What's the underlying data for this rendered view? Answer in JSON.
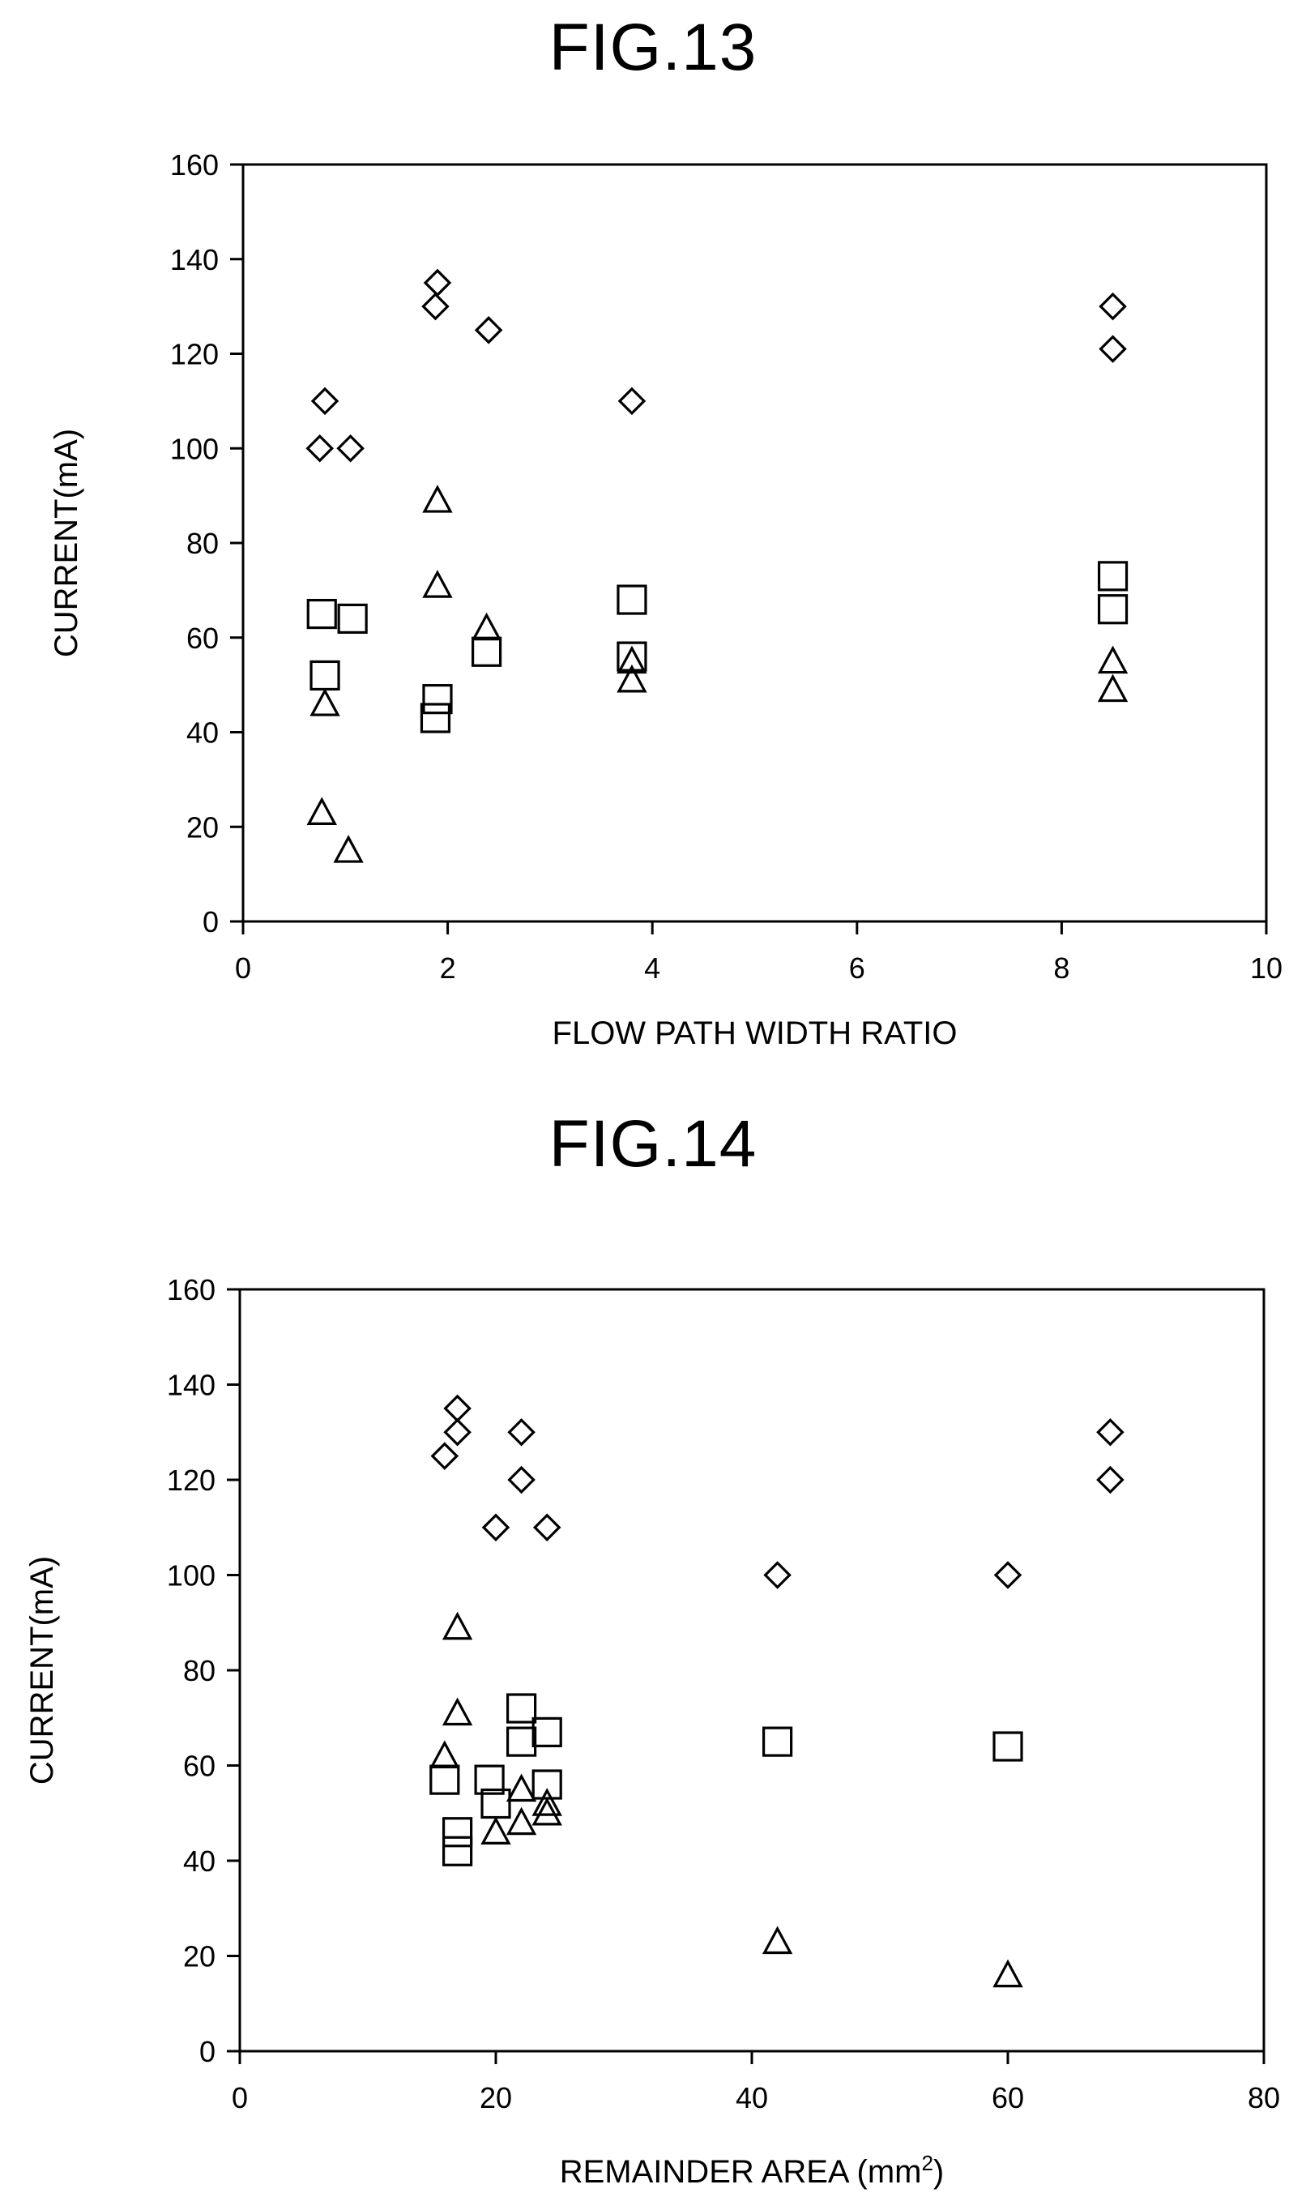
{
  "figures": [
    {
      "title": "FIG.13",
      "chart_data": {
        "type": "scatter",
        "title": "FIG.13",
        "xlabel": "FLOW PATH WIDTH RATIO",
        "ylabel": "CURRENT(mA)",
        "xlim": [
          0,
          10
        ],
        "ylim": [
          0,
          160
        ],
        "xticks": [
          0,
          2,
          4,
          6,
          8,
          10
        ],
        "yticks": [
          0,
          20,
          40,
          60,
          80,
          100,
          120,
          140,
          160
        ],
        "grid": false,
        "legend": "none",
        "series": [
          {
            "marker": "diamond",
            "points": [
              [
                0.8,
                110
              ],
              [
                0.75,
                100
              ],
              [
                1.05,
                100
              ],
              [
                1.9,
                135
              ],
              [
                1.88,
                130
              ],
              [
                2.4,
                125
              ],
              [
                3.8,
                110
              ],
              [
                8.5,
                130
              ],
              [
                8.5,
                121
              ]
            ]
          },
          {
            "marker": "square",
            "points": [
              [
                0.77,
                65
              ],
              [
                1.07,
                64
              ],
              [
                0.8,
                52
              ],
              [
                1.9,
                47
              ],
              [
                1.88,
                43
              ],
              [
                2.38,
                57
              ],
              [
                3.8,
                68
              ],
              [
                3.8,
                56
              ],
              [
                8.5,
                73
              ],
              [
                8.5,
                66
              ]
            ]
          },
          {
            "marker": "triangle",
            "points": [
              [
                0.8,
                46
              ],
              [
                0.77,
                23
              ],
              [
                1.03,
                15
              ],
              [
                1.9,
                89
              ],
              [
                1.9,
                71
              ],
              [
                2.38,
                62
              ],
              [
                3.8,
                55
              ],
              [
                3.8,
                51
              ],
              [
                8.5,
                55
              ],
              [
                8.5,
                49
              ]
            ]
          }
        ]
      }
    },
    {
      "title": "FIG.14",
      "chart_data": {
        "type": "scatter",
        "title": "FIG.14",
        "xlabel": "REMAINDER AREA (mm²)",
        "xlabel_base": "REMAINDER AREA (mm",
        "xlabel_sup": "2",
        "xlabel_end": ")",
        "ylabel": "CURRENT(mA)",
        "xlim": [
          0,
          80
        ],
        "ylim": [
          0,
          160
        ],
        "xticks": [
          0,
          20,
          40,
          60,
          80
        ],
        "yticks": [
          0,
          20,
          40,
          60,
          80,
          100,
          120,
          140,
          160
        ],
        "grid": false,
        "legend": "none",
        "series": [
          {
            "marker": "diamond",
            "points": [
              [
                17,
                135
              ],
              [
                17,
                130
              ],
              [
                16,
                125
              ],
              [
                22,
                130
              ],
              [
                22,
                120
              ],
              [
                20,
                110
              ],
              [
                24,
                110
              ],
              [
                42,
                100
              ],
              [
                60,
                100
              ],
              [
                68,
                130
              ],
              [
                68,
                120
              ]
            ]
          },
          {
            "marker": "square",
            "points": [
              [
                22,
                72
              ],
              [
                22,
                65
              ],
              [
                24,
                67
              ],
              [
                16,
                57
              ],
              [
                19.5,
                57
              ],
              [
                24,
                56
              ],
              [
                20,
                52
              ],
              [
                17,
                46
              ],
              [
                17,
                42
              ],
              [
                42,
                65
              ],
              [
                60,
                64
              ]
            ]
          },
          {
            "marker": "triangle",
            "points": [
              [
                17,
                89
              ],
              [
                17,
                71
              ],
              [
                16,
                62
              ],
              [
                22,
                55
              ],
              [
                24,
                52
              ],
              [
                24,
                50
              ],
              [
                22,
                48
              ],
              [
                20,
                46
              ],
              [
                42,
                23
              ],
              [
                60,
                16
              ]
            ]
          }
        ]
      }
    }
  ]
}
